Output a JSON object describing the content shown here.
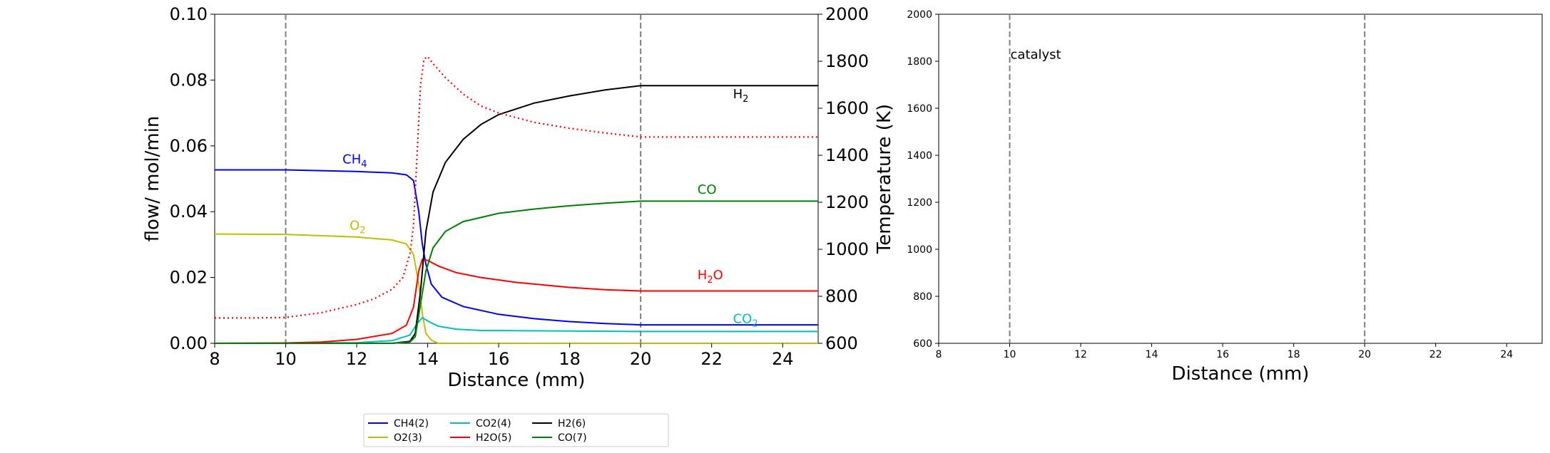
{
  "chart_data": [
    {
      "type": "line",
      "xlabel": "Distance (mm)",
      "ylabel": "flow/ mol/min",
      "y2label": "Temperature (K)",
      "xlim": [
        8,
        25
      ],
      "ylim": [
        0,
        0.1
      ],
      "y2lim": [
        600,
        2000
      ],
      "grid": false,
      "legend_position": "bottom-center",
      "xticks": [
        "8",
        "10",
        "12",
        "14",
        "16",
        "18",
        "20",
        "22",
        "24"
      ],
      "yticks": [
        "0.00",
        "0.02",
        "0.04",
        "0.06",
        "0.08",
        "0.10"
      ],
      "y2ticks": [
        "600",
        "800",
        "1000",
        "1200",
        "1400",
        "1600",
        "1800",
        "2000"
      ],
      "vlines": [
        10,
        20
      ],
      "series": [
        {
          "name": "CH4(2)",
          "color": "#0000ff",
          "label": "CH",
          "label_sub": "4",
          "label_xy": [
            11.6,
            0.0547
          ],
          "points": [
            [
              8,
              0.0527
            ],
            [
              10,
              0.0527
            ],
            [
              12,
              0.0522
            ],
            [
              13,
              0.0518
            ],
            [
              13.4,
              0.0512
            ],
            [
              13.6,
              0.0495
            ],
            [
              13.75,
              0.04
            ],
            [
              13.85,
              0.03
            ],
            [
              13.95,
              0.024
            ],
            [
              14.1,
              0.018
            ],
            [
              14.4,
              0.014
            ],
            [
              15,
              0.0112
            ],
            [
              16,
              0.0088
            ],
            [
              17,
              0.0075
            ],
            [
              18,
              0.0066
            ],
            [
              19,
              0.006
            ],
            [
              20,
              0.0056
            ],
            [
              25,
              0.0056
            ]
          ]
        },
        {
          "name": "O2(3)",
          "color": "#bfbf00",
          "label": "O",
          "label_sub": "2",
          "label_xy": [
            11.8,
            0.0345
          ],
          "points": [
            [
              8,
              0.0332
            ],
            [
              10,
              0.0331
            ],
            [
              12,
              0.0323
            ],
            [
              13,
              0.0314
            ],
            [
              13.4,
              0.0302
            ],
            [
              13.6,
              0.027
            ],
            [
              13.75,
              0.018
            ],
            [
              13.85,
              0.009
            ],
            [
              13.95,
              0.003
            ],
            [
              14.1,
              0.001
            ],
            [
              14.3,
              0.0
            ],
            [
              25,
              0.0
            ]
          ]
        },
        {
          "name": "CO2(4)",
          "color": "#00bfbf",
          "label": "CO",
          "label_sub": "2",
          "label_xy": [
            22.6,
            0.0062
          ],
          "points": [
            [
              8,
              0.0
            ],
            [
              12,
              0.0002
            ],
            [
              13,
              0.0008
            ],
            [
              13.5,
              0.0025
            ],
            [
              13.7,
              0.006
            ],
            [
              13.85,
              0.0078
            ],
            [
              14,
              0.0068
            ],
            [
              14.3,
              0.0052
            ],
            [
              14.8,
              0.0043
            ],
            [
              15.5,
              0.0039
            ],
            [
              20,
              0.0036
            ],
            [
              25,
              0.0036
            ]
          ]
        },
        {
          "name": "H2O(5)",
          "color": "#ff0000",
          "label": "H",
          "label_sub": "2",
          "label_tail": "O",
          "label_xy": [
            21.6,
            0.0195
          ],
          "points": [
            [
              8,
              0.0
            ],
            [
              10,
              0.0001
            ],
            [
              11,
              0.0004
            ],
            [
              12,
              0.0012
            ],
            [
              13,
              0.003
            ],
            [
              13.4,
              0.0055
            ],
            [
              13.6,
              0.011
            ],
            [
              13.75,
              0.022
            ],
            [
              13.85,
              0.0255
            ],
            [
              14,
              0.0252
            ],
            [
              14.3,
              0.0235
            ],
            [
              14.8,
              0.0215
            ],
            [
              15.5,
              0.02
            ],
            [
              16.5,
              0.0185
            ],
            [
              18,
              0.017
            ],
            [
              19,
              0.0163
            ],
            [
              20,
              0.0159
            ],
            [
              25,
              0.0159
            ]
          ]
        },
        {
          "name": "H2(6)",
          "color": "#000000",
          "label": "H",
          "label_sub": "2",
          "label_xy": [
            22.6,
            0.0745
          ],
          "points": [
            [
              8,
              0.0
            ],
            [
              13,
              0.0
            ],
            [
              13.5,
              0.0006
            ],
            [
              13.65,
              0.003
            ],
            [
              13.8,
              0.016
            ],
            [
              13.95,
              0.034
            ],
            [
              14.15,
              0.046
            ],
            [
              14.5,
              0.055
            ],
            [
              15,
              0.062
            ],
            [
              15.5,
              0.0665
            ],
            [
              16,
              0.0695
            ],
            [
              17,
              0.073
            ],
            [
              18,
              0.0752
            ],
            [
              19,
              0.077
            ],
            [
              20,
              0.0783
            ],
            [
              25,
              0.0783
            ]
          ]
        },
        {
          "name": "CO(7)",
          "color": "#008000",
          "label": "CO",
          "label_sub": "",
          "label_xy": [
            21.6,
            0.0455
          ],
          "points": [
            [
              8,
              0.0
            ],
            [
              13,
              0.0
            ],
            [
              13.5,
              0.0004
            ],
            [
              13.65,
              0.002
            ],
            [
              13.8,
              0.012
            ],
            [
              13.95,
              0.022
            ],
            [
              14.15,
              0.029
            ],
            [
              14.5,
              0.034
            ],
            [
              15,
              0.037
            ],
            [
              16,
              0.0395
            ],
            [
              17,
              0.0408
            ],
            [
              18,
              0.0418
            ],
            [
              19,
              0.0426
            ],
            [
              20,
              0.0432
            ],
            [
              25,
              0.0432
            ]
          ]
        }
      ],
      "temperature": {
        "color": "#ff0000",
        "style": "dotted",
        "points": [
          [
            8,
            708
          ],
          [
            9,
            708
          ],
          [
            10,
            710
          ],
          [
            11,
            730
          ],
          [
            11.5,
            748
          ],
          [
            12,
            765
          ],
          [
            12.5,
            790
          ],
          [
            13,
            830
          ],
          [
            13.3,
            880
          ],
          [
            13.5,
            980
          ],
          [
            13.6,
            1100
          ],
          [
            13.7,
            1400
          ],
          [
            13.8,
            1700
          ],
          [
            13.9,
            1810
          ],
          [
            14,
            1820
          ],
          [
            14.15,
            1790
          ],
          [
            14.5,
            1730
          ],
          [
            15,
            1660
          ],
          [
            15.5,
            1610
          ],
          [
            16,
            1580
          ],
          [
            17,
            1540
          ],
          [
            18,
            1515
          ],
          [
            19,
            1495
          ],
          [
            20,
            1478
          ],
          [
            25,
            1478
          ]
        ]
      }
    },
    {
      "type": "line",
      "xlabel": "Distance (mm)",
      "ylabel": "",
      "xlim": [
        8,
        25
      ],
      "ylim": [
        600,
        2000
      ],
      "grid": false,
      "xticks": [
        "8",
        "10",
        "12",
        "14",
        "16",
        "18",
        "20",
        "22",
        "24"
      ],
      "yticks": [
        "600",
        "800",
        "1000",
        "1200",
        "1400",
        "1600",
        "1800",
        "2000"
      ],
      "vlines": [
        10,
        20
      ],
      "annotation": {
        "text": "catalyst",
        "x": 10,
        "y": 1810
      },
      "series": []
    }
  ]
}
